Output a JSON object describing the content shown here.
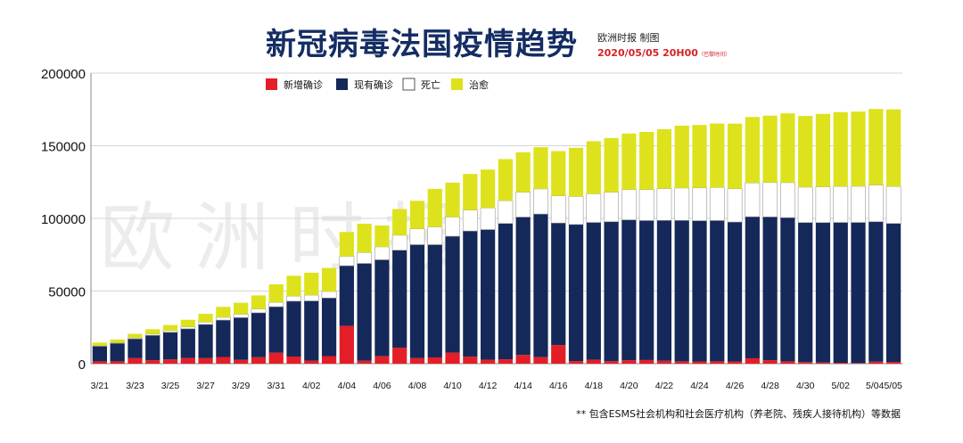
{
  "header": {
    "title": "新冠病毒法国疫情趋势",
    "source": "欧洲时报 制图",
    "timestamp": "2020/05/05 20H00",
    "timestamp_note": "（巴黎时间）"
  },
  "watermark": "欧洲时报",
  "footnote": "** 包含ESMS社会机构和社会医疗机构（养老院、残疾人接待机构）等数据",
  "chart_data": {
    "type": "bar",
    "stacked": true,
    "categories": [
      "3/21",
      "3/22",
      "3/23",
      "3/24",
      "3/25",
      "3/26",
      "3/27",
      "3/28",
      "3/29",
      "3/30",
      "3/31",
      "4/01",
      "4/02",
      "4/03",
      "4/04",
      "4/05",
      "4/06",
      "4/07",
      "4/08",
      "4/09",
      "4/10",
      "4/11",
      "4/12",
      "4/13",
      "4/14",
      "4/15",
      "4/16",
      "4/17",
      "4/18",
      "4/19",
      "4/20",
      "4/21",
      "4/22",
      "4/23",
      "4/24",
      "4/25",
      "4/26",
      "4/27",
      "4/28",
      "4/29",
      "4/30",
      "5/01",
      "5/02",
      "5/03",
      "5/04",
      "5/05"
    ],
    "tick_labels": [
      "3/21",
      "3/23",
      "3/25",
      "3/27",
      "3/29",
      "3/31",
      "4/02",
      "4/04",
      "4/06",
      "4/08",
      "4/10",
      "4/12",
      "4/14",
      "4/16",
      "4/18",
      "4/20",
      "4/22",
      "4/24",
      "4/26",
      "4/28",
      "4/30",
      "5/02",
      "5/04",
      "5/05"
    ],
    "ylim": [
      0,
      200000
    ],
    "yticks": [
      0,
      50000,
      100000,
      150000,
      200000
    ],
    "legend_position": "top-center",
    "series": [
      {
        "name": "新增确诊",
        "color": "#e41e26",
        "values": [
          1600,
          1600,
          3800,
          2400,
          2900,
          3900,
          3800,
          4600,
          2600,
          4400,
          7500,
          4900,
          2100,
          5200,
          26000,
          2000,
          5100,
          11000,
          3800,
          4300,
          7600,
          4800,
          2700,
          3000,
          6000,
          4500,
          12800,
          1800,
          2700,
          1700,
          2400,
          2500,
          2000,
          1600,
          1500,
          1600,
          1500,
          3700,
          2400,
          1600,
          1100,
          800,
          600,
          400,
          1400,
          1200
        ]
      },
      {
        "name": "现有确诊",
        "color": "#15285a",
        "values": [
          10400,
          12400,
          13300,
          17100,
          18700,
          20100,
          23200,
          25400,
          29100,
          30600,
          31700,
          38100,
          41100,
          40000,
          41400,
          67000,
          66400,
          67100,
          78100,
          77600,
          80100,
          86500,
          89600,
          93500,
          94900,
          98500,
          84000,
          94000,
          94500,
          96000,
          96600,
          96000,
          96600,
          97000,
          96900,
          96900,
          96000,
          97400,
          98600,
          98900,
          96000,
          96300,
          96600,
          96800,
          96300,
          95300
        ]
      },
      {
        "name": "死亡",
        "color": "#ffffff",
        "values": [
          300,
          400,
          600,
          900,
          1100,
          1300,
          1600,
          1900,
          2300,
          2600,
          3000,
          3500,
          4000,
          4500,
          6500,
          7500,
          8900,
          10300,
          10900,
          12200,
          13200,
          14400,
          14900,
          15700,
          17100,
          17300,
          18700,
          19300,
          19700,
          20300,
          20800,
          21300,
          21900,
          22300,
          22600,
          22800,
          22900,
          23300,
          23700,
          24100,
          24400,
          24600,
          24800,
          24900,
          25200,
          25500
        ]
      },
      {
        "name": "治愈",
        "color": "#dde21d",
        "values": [
          2200,
          2300,
          2800,
          3300,
          3900,
          4900,
          5700,
          7200,
          7900,
          9400,
          12400,
          14000,
          15400,
          16200,
          16700,
          19800,
          14700,
          18000,
          19300,
          26200,
          23700,
          24900,
          26400,
          28600,
          27500,
          28700,
          30800,
          33500,
          36200,
          37300,
          38600,
          39700,
          40900,
          42900,
          43300,
          44000,
          44800,
          45400,
          46000,
          47700,
          49000,
          50200,
          51100,
          51400,
          52400,
          53000
        ]
      }
    ]
  }
}
